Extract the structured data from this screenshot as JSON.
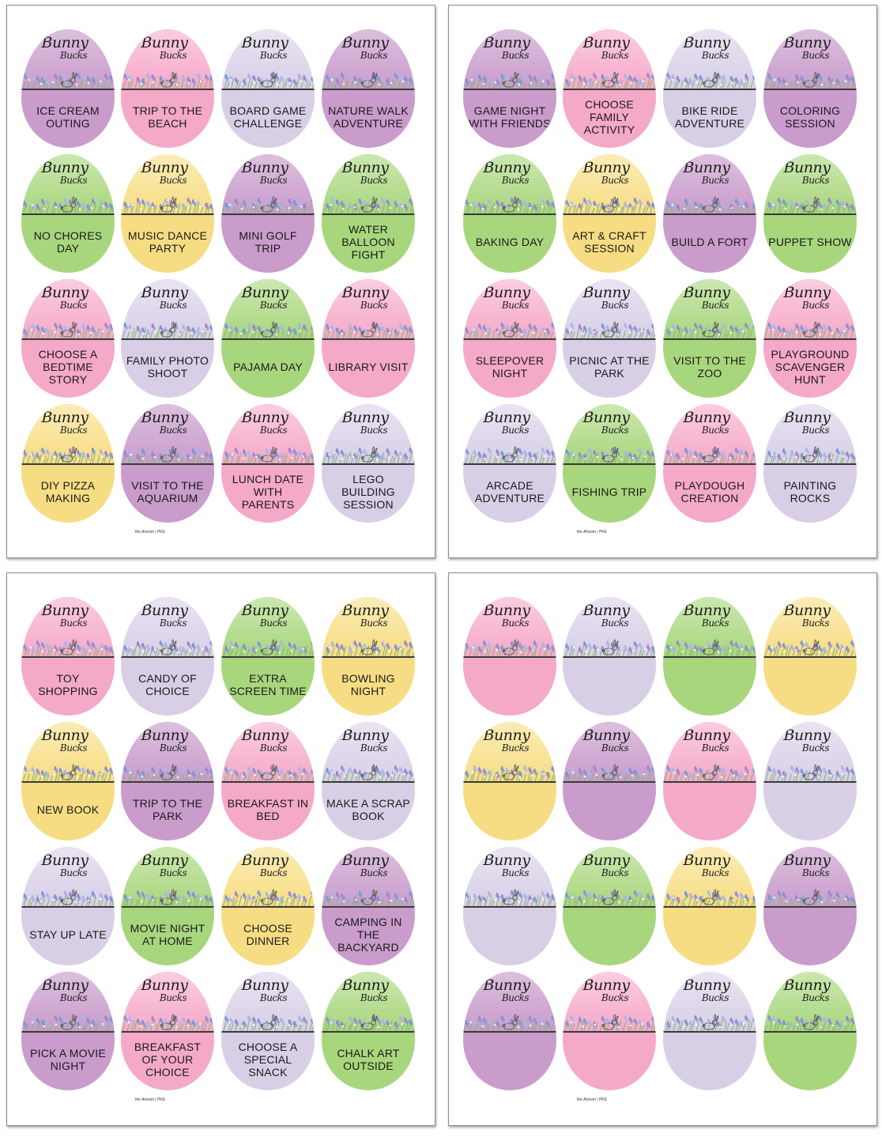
{
  "colors": {
    "purple": "#c99ccc",
    "pink": "#f5a9c8",
    "lavender": "#d8cfe6",
    "green": "#a8d67d",
    "yellow": "#f6dd83"
  },
  "egg_logo": {
    "line1": "Bunny",
    "line2": "Bucks"
  },
  "pages": [
    {
      "credit": "the Artsom | PKE",
      "eggs": [
        {
          "color": "purple",
          "label": "ICE CREAM OUTING"
        },
        {
          "color": "pink",
          "label": "TRIP TO THE BEACH"
        },
        {
          "color": "lavender",
          "label": "BOARD GAME CHALLENGE"
        },
        {
          "color": "purple",
          "label": "NATURE WALK ADVENTURE"
        },
        {
          "color": "green",
          "label": "NO CHORES DAY"
        },
        {
          "color": "yellow",
          "label": "MUSIC DANCE PARTY"
        },
        {
          "color": "purple",
          "label": "MINI GOLF TRIP"
        },
        {
          "color": "green",
          "label": "WATER BALLOON FIGHT"
        },
        {
          "color": "pink",
          "label": "CHOOSE A BEDTIME STORY"
        },
        {
          "color": "lavender",
          "label": "FAMILY PHOTO SHOOT"
        },
        {
          "color": "green",
          "label": "PAJAMA DAY"
        },
        {
          "color": "pink",
          "label": "LIBRARY VISIT"
        },
        {
          "color": "yellow",
          "label": "DIY PIZZA MAKING"
        },
        {
          "color": "purple",
          "label": "VISIT TO THE AQUARIUM"
        },
        {
          "color": "pink",
          "label": "LUNCH DATE WITH PARENTS"
        },
        {
          "color": "lavender",
          "label": "LEGO BUILDING SESSION"
        }
      ]
    },
    {
      "credit": "the Artsom | PKE",
      "eggs": [
        {
          "color": "purple",
          "label": "GAME NIGHT WITH FRIENDS"
        },
        {
          "color": "pink",
          "label": "CHOOSE FAMILY ACTIVITY"
        },
        {
          "color": "lavender",
          "label": "BIKE RIDE ADVENTURE"
        },
        {
          "color": "purple",
          "label": "COLORING SESSION"
        },
        {
          "color": "green",
          "label": "BAKING DAY"
        },
        {
          "color": "yellow",
          "label": "ART & CRAFT SESSION"
        },
        {
          "color": "purple",
          "label": "BUILD A FORT"
        },
        {
          "color": "green",
          "label": "PUPPET SHOW"
        },
        {
          "color": "pink",
          "label": "SLEEPOVER NIGHT"
        },
        {
          "color": "lavender",
          "label": "PICNIC AT THE PARK"
        },
        {
          "color": "green",
          "label": "VISIT TO THE ZOO"
        },
        {
          "color": "pink",
          "label": "PLAYGROUND SCAVENGER HUNT"
        },
        {
          "color": "lavender",
          "label": "ARCADE ADVENTURE"
        },
        {
          "color": "green",
          "label": "FISHING TRIP"
        },
        {
          "color": "pink",
          "label": "PLAYDOUGH CREATION"
        },
        {
          "color": "lavender",
          "label": "PAINTING ROCKS"
        }
      ]
    },
    {
      "credit": "the Artsom | PKE",
      "eggs": [
        {
          "color": "pink",
          "label": "TOY SHOPPING"
        },
        {
          "color": "lavender",
          "label": "CANDY OF CHOICE"
        },
        {
          "color": "green",
          "label": "EXTRA SCREEN TIME"
        },
        {
          "color": "yellow",
          "label": "BOWLING NIGHT"
        },
        {
          "color": "yellow",
          "label": "NEW BOOK"
        },
        {
          "color": "purple",
          "label": "TRIP TO THE PARK"
        },
        {
          "color": "pink",
          "label": "BREAKFAST IN BED"
        },
        {
          "color": "lavender",
          "label": "MAKE A SCRAP BOOK"
        },
        {
          "color": "lavender",
          "label": "STAY UP LATE"
        },
        {
          "color": "green",
          "label": "MOVIE NIGHT AT HOME"
        },
        {
          "color": "yellow",
          "label": "CHOOSE DINNER"
        },
        {
          "color": "purple",
          "label": "CAMPING IN THE BACKYARD"
        },
        {
          "color": "purple",
          "label": "PICK A MOVIE NIGHT"
        },
        {
          "color": "pink",
          "label": "BREAKFAST OF YOUR CHOICE"
        },
        {
          "color": "lavender",
          "label": "CHOOSE A SPECIAL SNACK"
        },
        {
          "color": "green",
          "label": "CHALK ART OUTSIDE"
        }
      ]
    },
    {
      "credit": "the Artsom | PKE",
      "eggs": [
        {
          "color": "pink",
          "label": ""
        },
        {
          "color": "lavender",
          "label": ""
        },
        {
          "color": "green",
          "label": ""
        },
        {
          "color": "yellow",
          "label": ""
        },
        {
          "color": "yellow",
          "label": ""
        },
        {
          "color": "purple",
          "label": ""
        },
        {
          "color": "pink",
          "label": ""
        },
        {
          "color": "lavender",
          "label": ""
        },
        {
          "color": "lavender",
          "label": ""
        },
        {
          "color": "green",
          "label": ""
        },
        {
          "color": "yellow",
          "label": ""
        },
        {
          "color": "purple",
          "label": ""
        },
        {
          "color": "purple",
          "label": ""
        },
        {
          "color": "pink",
          "label": ""
        },
        {
          "color": "lavender",
          "label": ""
        },
        {
          "color": "green",
          "label": ""
        }
      ]
    }
  ]
}
